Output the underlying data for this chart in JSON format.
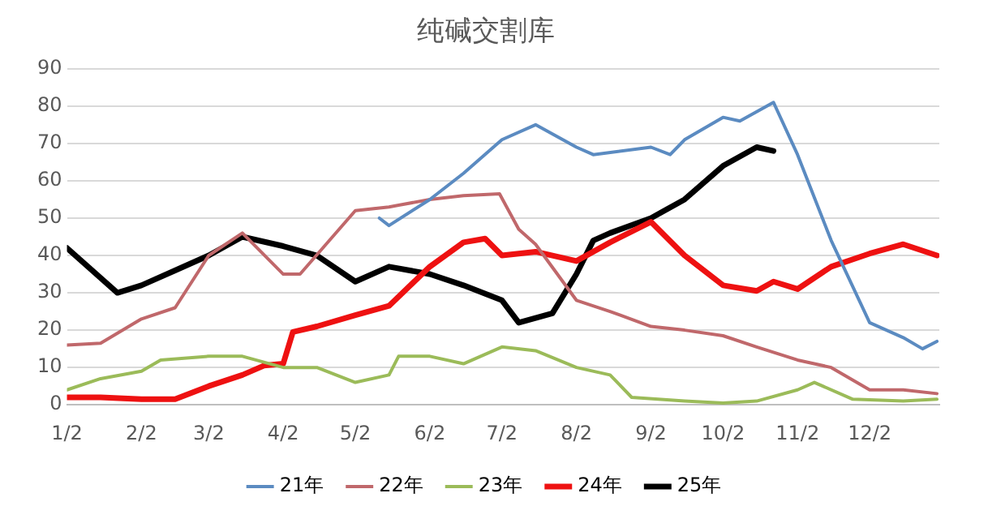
{
  "chart_data": {
    "type": "line",
    "title": "纯碱交割库",
    "xlim": [
      "--01-02",
      "--12-31"
    ],
    "xticks": [
      {
        "value": "--01-02",
        "label": "1/2"
      },
      {
        "value": "--02-02",
        "label": "2/2"
      },
      {
        "value": "--03-02",
        "label": "3/2"
      },
      {
        "value": "--04-02",
        "label": "4/2"
      },
      {
        "value": "--05-02",
        "label": "5/2"
      },
      {
        "value": "--06-02",
        "label": "6/2"
      },
      {
        "value": "--07-02",
        "label": "7/2"
      },
      {
        "value": "--08-02",
        "label": "8/2"
      },
      {
        "value": "--09-02",
        "label": "9/2"
      },
      {
        "value": "--10-02",
        "label": "10/2"
      },
      {
        "value": "--11-02",
        "label": "11/2"
      },
      {
        "value": "--12-02",
        "label": "12/2"
      }
    ],
    "ylim": [
      0,
      90
    ],
    "yticks": [
      0,
      10,
      20,
      30,
      40,
      50,
      60,
      70,
      80,
      90
    ],
    "grid": "y",
    "legend": "bottom",
    "marker": "none",
    "line_style": "solid",
    "series": [
      {
        "name": "21年",
        "color": "#5b8bc1",
        "x": [
          "--05-12",
          "--05-16",
          "--06-02",
          "--06-16",
          "--07-02",
          "--07-16",
          "--08-02",
          "--08-09",
          "--09-02",
          "--09-10",
          "--09-16",
          "--10-02",
          "--10-09",
          "--10-23",
          "--11-02",
          "--11-16",
          "--12-02",
          "--12-16",
          "--12-24",
          "--12-30"
        ],
        "values": [
          50,
          48,
          55,
          62,
          71,
          75,
          69,
          67,
          69,
          67,
          71,
          77,
          76,
          81,
          67,
          44,
          22,
          18,
          15,
          17
        ]
      },
      {
        "name": "22年",
        "color": "#c0686b",
        "x": [
          "--01-02",
          "--01-16",
          "--02-02",
          "--02-16",
          "--03-02",
          "--03-16",
          "--04-02",
          "--04-09",
          "--05-02",
          "--05-16",
          "--06-02",
          "--06-16",
          "--07-01",
          "--07-09",
          "--07-16",
          "--08-02",
          "--08-16",
          "--09-02",
          "--09-16",
          "--10-02",
          "--10-16",
          "--11-02",
          "--11-16",
          "--12-02",
          "--12-16",
          "--12-30"
        ],
        "values": [
          16,
          16.5,
          23,
          26,
          40,
          46,
          35,
          35,
          52,
          53,
          55,
          56,
          56.5,
          47,
          43,
          28,
          25,
          21,
          20,
          18.5,
          15.5,
          12,
          10,
          4,
          4,
          3
        ]
      },
      {
        "name": "23年",
        "color": "#9bbb59",
        "x": [
          "--01-02",
          "--01-16",
          "--02-02",
          "--02-10",
          "--03-02",
          "--03-16",
          "--04-02",
          "--04-16",
          "--05-02",
          "--05-16",
          "--05-20",
          "--06-02",
          "--06-16",
          "--07-02",
          "--07-16",
          "--08-02",
          "--08-16",
          "--08-25",
          "--09-16",
          "--10-02",
          "--10-16",
          "--11-02",
          "--11-09",
          "--11-25",
          "--12-16",
          "--12-30"
        ],
        "values": [
          4,
          7,
          9,
          12,
          13,
          13,
          10,
          10,
          6,
          8,
          13,
          13,
          11,
          15.5,
          14.5,
          10,
          8,
          2,
          1,
          0.5,
          1,
          4,
          6,
          1.5,
          1,
          1.5
        ]
      },
      {
        "name": "24年",
        "color": "#ee1111",
        "x": [
          "--01-02",
          "--01-16",
          "--02-02",
          "--02-16",
          "--03-02",
          "--03-16",
          "--03-25",
          "--04-02",
          "--04-06",
          "--04-16",
          "--05-02",
          "--05-16",
          "--06-02",
          "--06-16",
          "--06-25",
          "--07-02",
          "--07-16",
          "--08-02",
          "--08-16",
          "--09-02",
          "--09-16",
          "--10-02",
          "--10-16",
          "--10-23",
          "--11-02",
          "--11-16",
          "--12-02",
          "--12-16",
          "--12-30"
        ],
        "values": [
          2,
          2,
          1.5,
          1.5,
          5,
          8,
          10.5,
          11,
          19.5,
          21,
          24,
          26.5,
          37,
          43.5,
          44.5,
          40,
          41,
          38.5,
          43.5,
          49,
          40,
          32,
          30.5,
          33,
          31,
          37,
          40.5,
          43,
          40
        ]
      },
      {
        "name": "25年",
        "color": "#000000",
        "x": [
          "--01-02",
          "--01-23",
          "--02-02",
          "--02-16",
          "--03-02",
          "--03-16",
          "--04-02",
          "--04-16",
          "--05-02",
          "--05-16",
          "--06-02",
          "--06-16",
          "--07-02",
          "--07-09",
          "--07-23",
          "--08-02",
          "--08-09",
          "--08-16",
          "--09-02",
          "--09-16",
          "--10-02",
          "--10-16",
          "--10-23"
        ],
        "values": [
          42,
          30,
          32,
          36,
          40,
          45,
          42.5,
          40,
          33,
          37,
          35,
          32,
          28,
          22,
          24.5,
          35,
          44,
          46,
          50,
          55,
          64,
          69,
          68
        ]
      }
    ]
  }
}
